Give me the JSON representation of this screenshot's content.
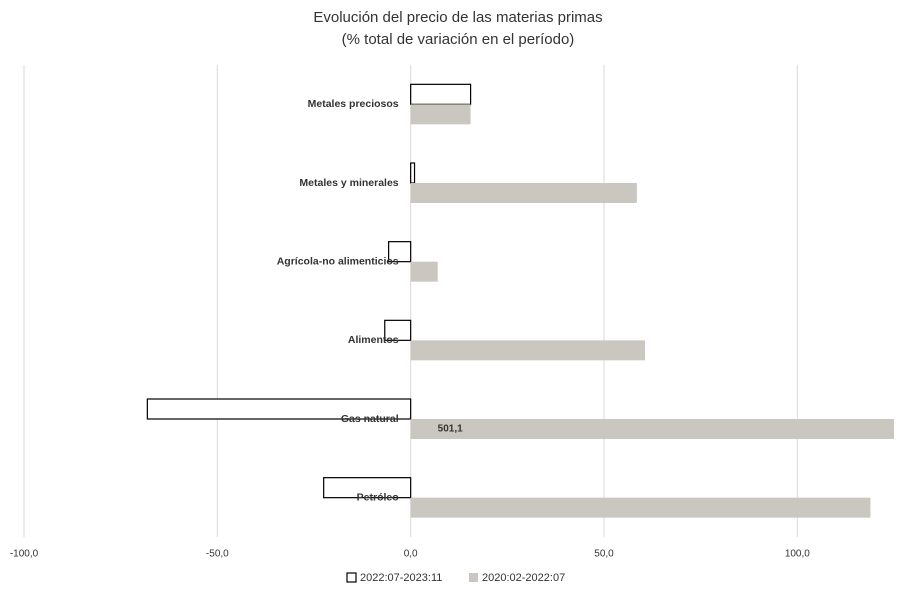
{
  "chart_data": {
    "type": "barh",
    "title": "Evolución del precio de las materias primas",
    "subtitle": "(% total de variación en el período)",
    "categories": [
      "Metales preciosos",
      "Metales y minerales",
      "Agrícola-no alimenticios",
      "Alimentos",
      "Gas natural",
      "Petróleo"
    ],
    "series": [
      {
        "name": "2022:07-2023:11",
        "color": "#ffffff",
        "stroke": "#000000",
        "values": [
          15.5,
          1.0,
          -5.7,
          -6.7,
          -68.1,
          -22.5
        ]
      },
      {
        "name": "2020:02-2022:07",
        "color": "#c9c7c0",
        "values": [
          15.5,
          58.5,
          7.0,
          60.6,
          501.1,
          118.9
        ],
        "value_labels": [
          null,
          null,
          null,
          null,
          "501,1",
          null
        ]
      }
    ],
    "xlim": [
      -100,
      125
    ],
    "xticks": [
      {
        "value": -100,
        "label": "-100,0"
      },
      {
        "value": -50,
        "label": "-50,0"
      },
      {
        "value": 0,
        "label": "0,0"
      },
      {
        "value": 50,
        "label": "50,0"
      },
      {
        "value": 100,
        "label": "100,0"
      }
    ],
    "grid": true,
    "legend": "bottom"
  }
}
